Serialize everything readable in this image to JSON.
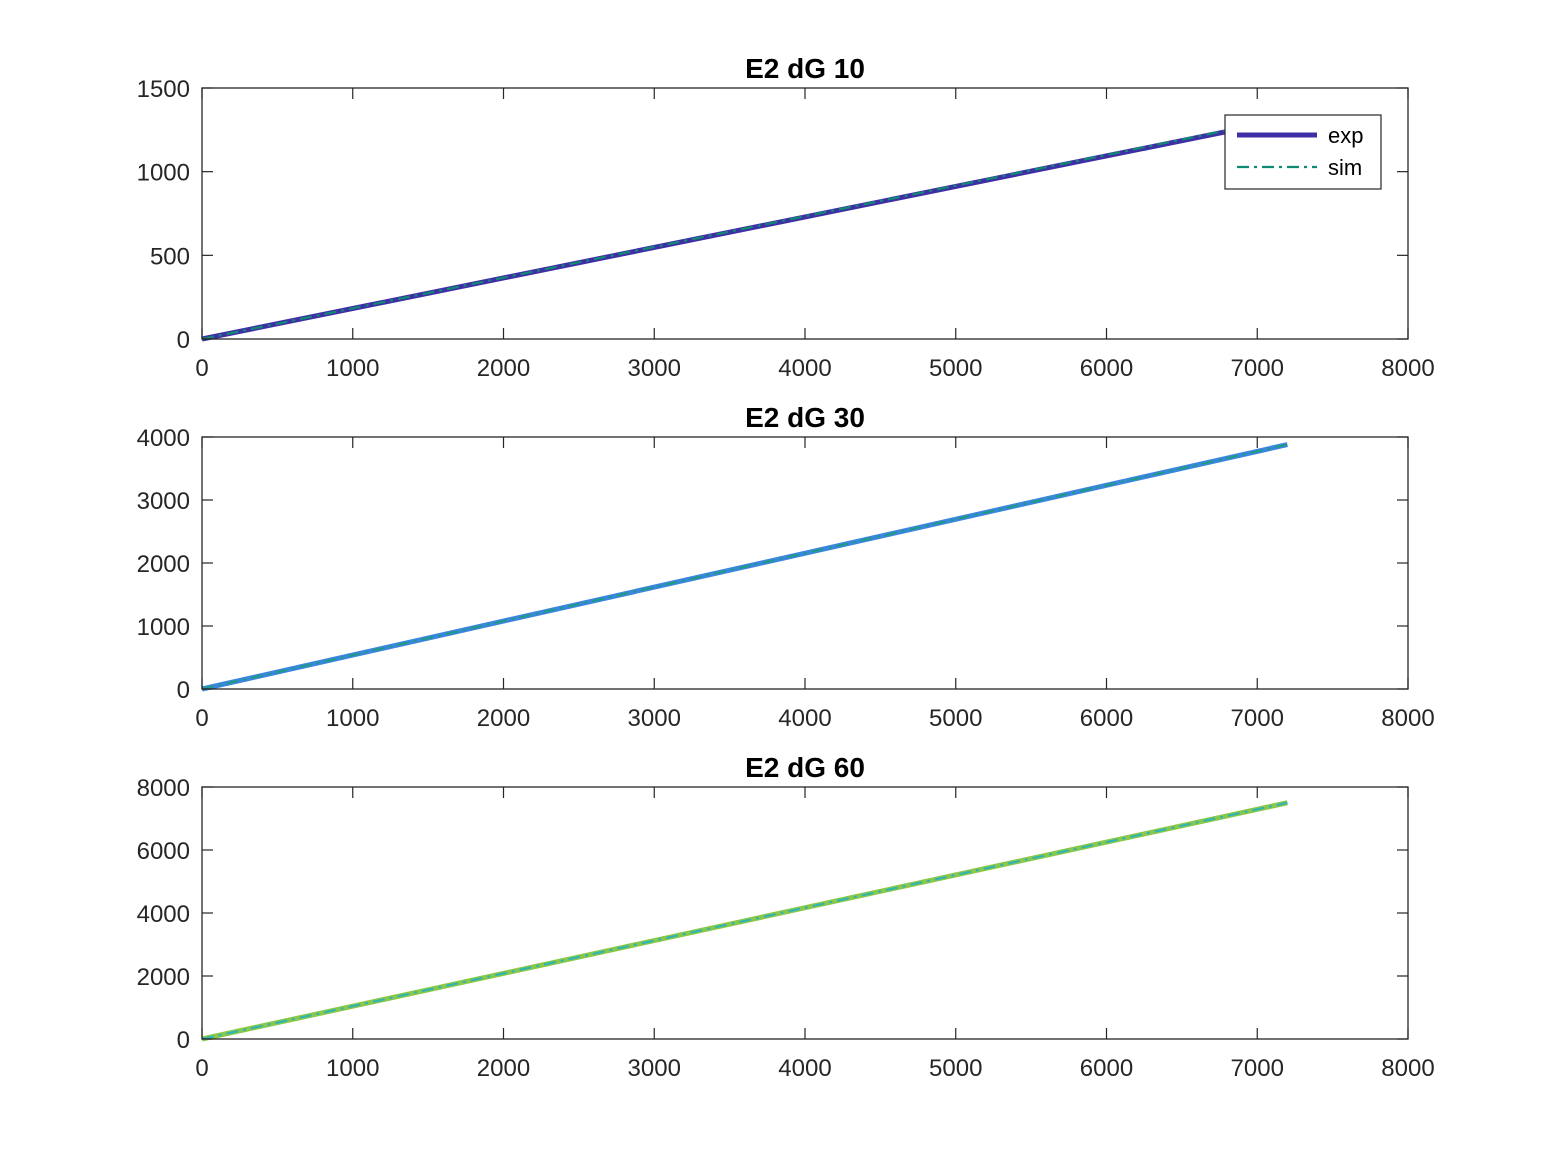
{
  "chart_data": [
    {
      "type": "line",
      "title": "E2 dG 10",
      "xlabel": "",
      "ylabel": "",
      "xlim": [
        0,
        8000
      ],
      "ylim": [
        0,
        1500
      ],
      "xticks": [
        0,
        1000,
        2000,
        3000,
        4000,
        5000,
        6000,
        7000,
        8000
      ],
      "yticks": [
        0,
        500,
        1000,
        1500
      ],
      "grid": false,
      "legend": {
        "placement": "top-right",
        "entries": [
          "exp",
          "sim"
        ]
      },
      "series": [
        {
          "name": "exp",
          "style": "solid-thick",
          "color": "#3F2FA6",
          "x": [
            0,
            6800
          ],
          "y": [
            0,
            1240
          ]
        },
        {
          "name": "sim",
          "style": "dash-dot",
          "color": "#0F8A72",
          "x": [
            0,
            7200
          ],
          "y": [
            0,
            1320
          ]
        }
      ]
    },
    {
      "type": "line",
      "title": "E2 dG 30",
      "xlabel": "",
      "ylabel": "",
      "xlim": [
        0,
        8000
      ],
      "ylim": [
        0,
        4000
      ],
      "xticks": [
        0,
        1000,
        2000,
        3000,
        4000,
        5000,
        6000,
        7000,
        8000
      ],
      "yticks": [
        0,
        1000,
        2000,
        3000,
        4000
      ],
      "grid": false,
      "series": [
        {
          "style": "solid-thick",
          "color": "#3A86E0",
          "x": [
            0,
            7200
          ],
          "y": [
            0,
            3880
          ]
        },
        {
          "style": "dash-dot",
          "color": "#1F9A86",
          "x": [
            0,
            7200
          ],
          "y": [
            0,
            3880
          ]
        }
      ]
    },
    {
      "type": "line",
      "title": "E2 dG 60",
      "xlabel": "",
      "ylabel": "",
      "xlim": [
        0,
        8000
      ],
      "ylim": [
        0,
        8000
      ],
      "xticks": [
        0,
        1000,
        2000,
        3000,
        4000,
        5000,
        6000,
        7000,
        8000
      ],
      "yticks": [
        0,
        2000,
        4000,
        6000,
        8000
      ],
      "grid": false,
      "series": [
        {
          "style": "solid-thick",
          "color": "#8BC84A",
          "x": [
            0,
            7200
          ],
          "y": [
            0,
            7500
          ]
        },
        {
          "style": "dash-dot",
          "color": "#2FB5B0",
          "x": [
            0,
            7200
          ],
          "y": [
            0,
            7500
          ]
        }
      ]
    }
  ]
}
